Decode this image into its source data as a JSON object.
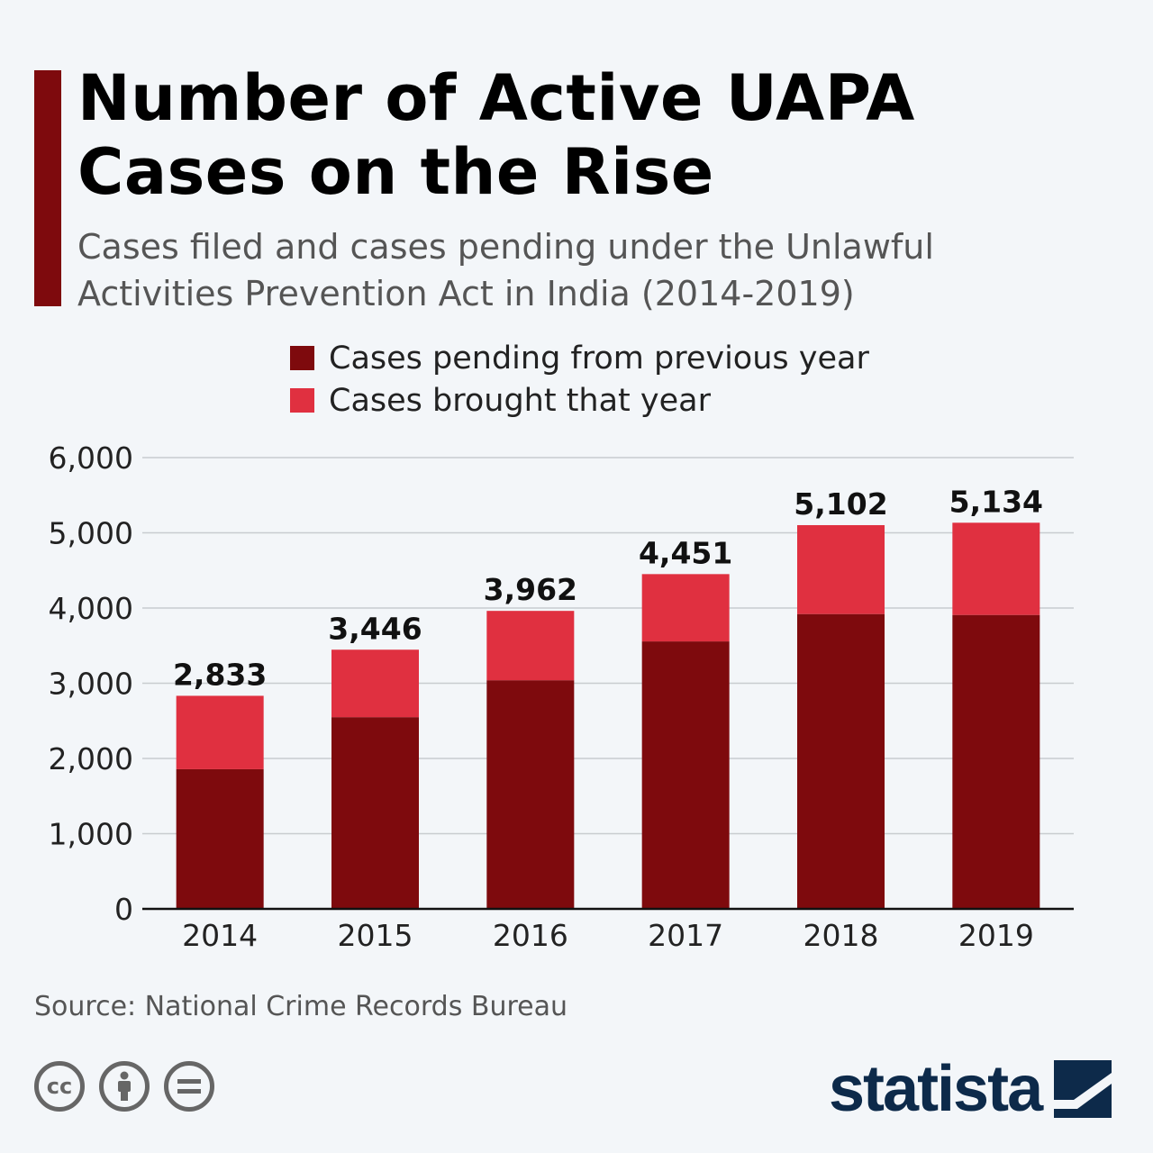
{
  "title": "Number of Active UAPA Cases on the Rise",
  "subtitle": "Cases filed and cases pending under the Unlawful Activities Prevention Act in India (2014-2019)",
  "source": "Source: National Crime Records Bureau",
  "brand": "statista",
  "license_icons": [
    "cc-icon",
    "attribution-icon",
    "no-derivatives-icon"
  ],
  "colors": {
    "pending": "#7e0a0d",
    "brought": "#e03040",
    "accent": "#7e0a0d",
    "background": "#f3f6f9"
  },
  "chart_data": {
    "type": "bar",
    "stacked": true,
    "categories": [
      "2014",
      "2015",
      "2016",
      "2017",
      "2018",
      "2019"
    ],
    "series": [
      {
        "name": "Cases pending from previous year",
        "values": [
          1857,
          2549,
          3040,
          3556,
          3920,
          3908
        ]
      },
      {
        "name": "Cases brought that year",
        "values": [
          976,
          897,
          922,
          895,
          1182,
          1226
        ]
      }
    ],
    "totals": [
      "2,833",
      "3,446",
      "3,962",
      "4,451",
      "5,102",
      "5,134"
    ],
    "ylim": [
      0,
      6000
    ],
    "yticks": [
      "0",
      "1,000",
      "2,000",
      "3,000",
      "4,000",
      "5,000",
      "6,000"
    ],
    "grid": true,
    "legend_position": "top"
  }
}
